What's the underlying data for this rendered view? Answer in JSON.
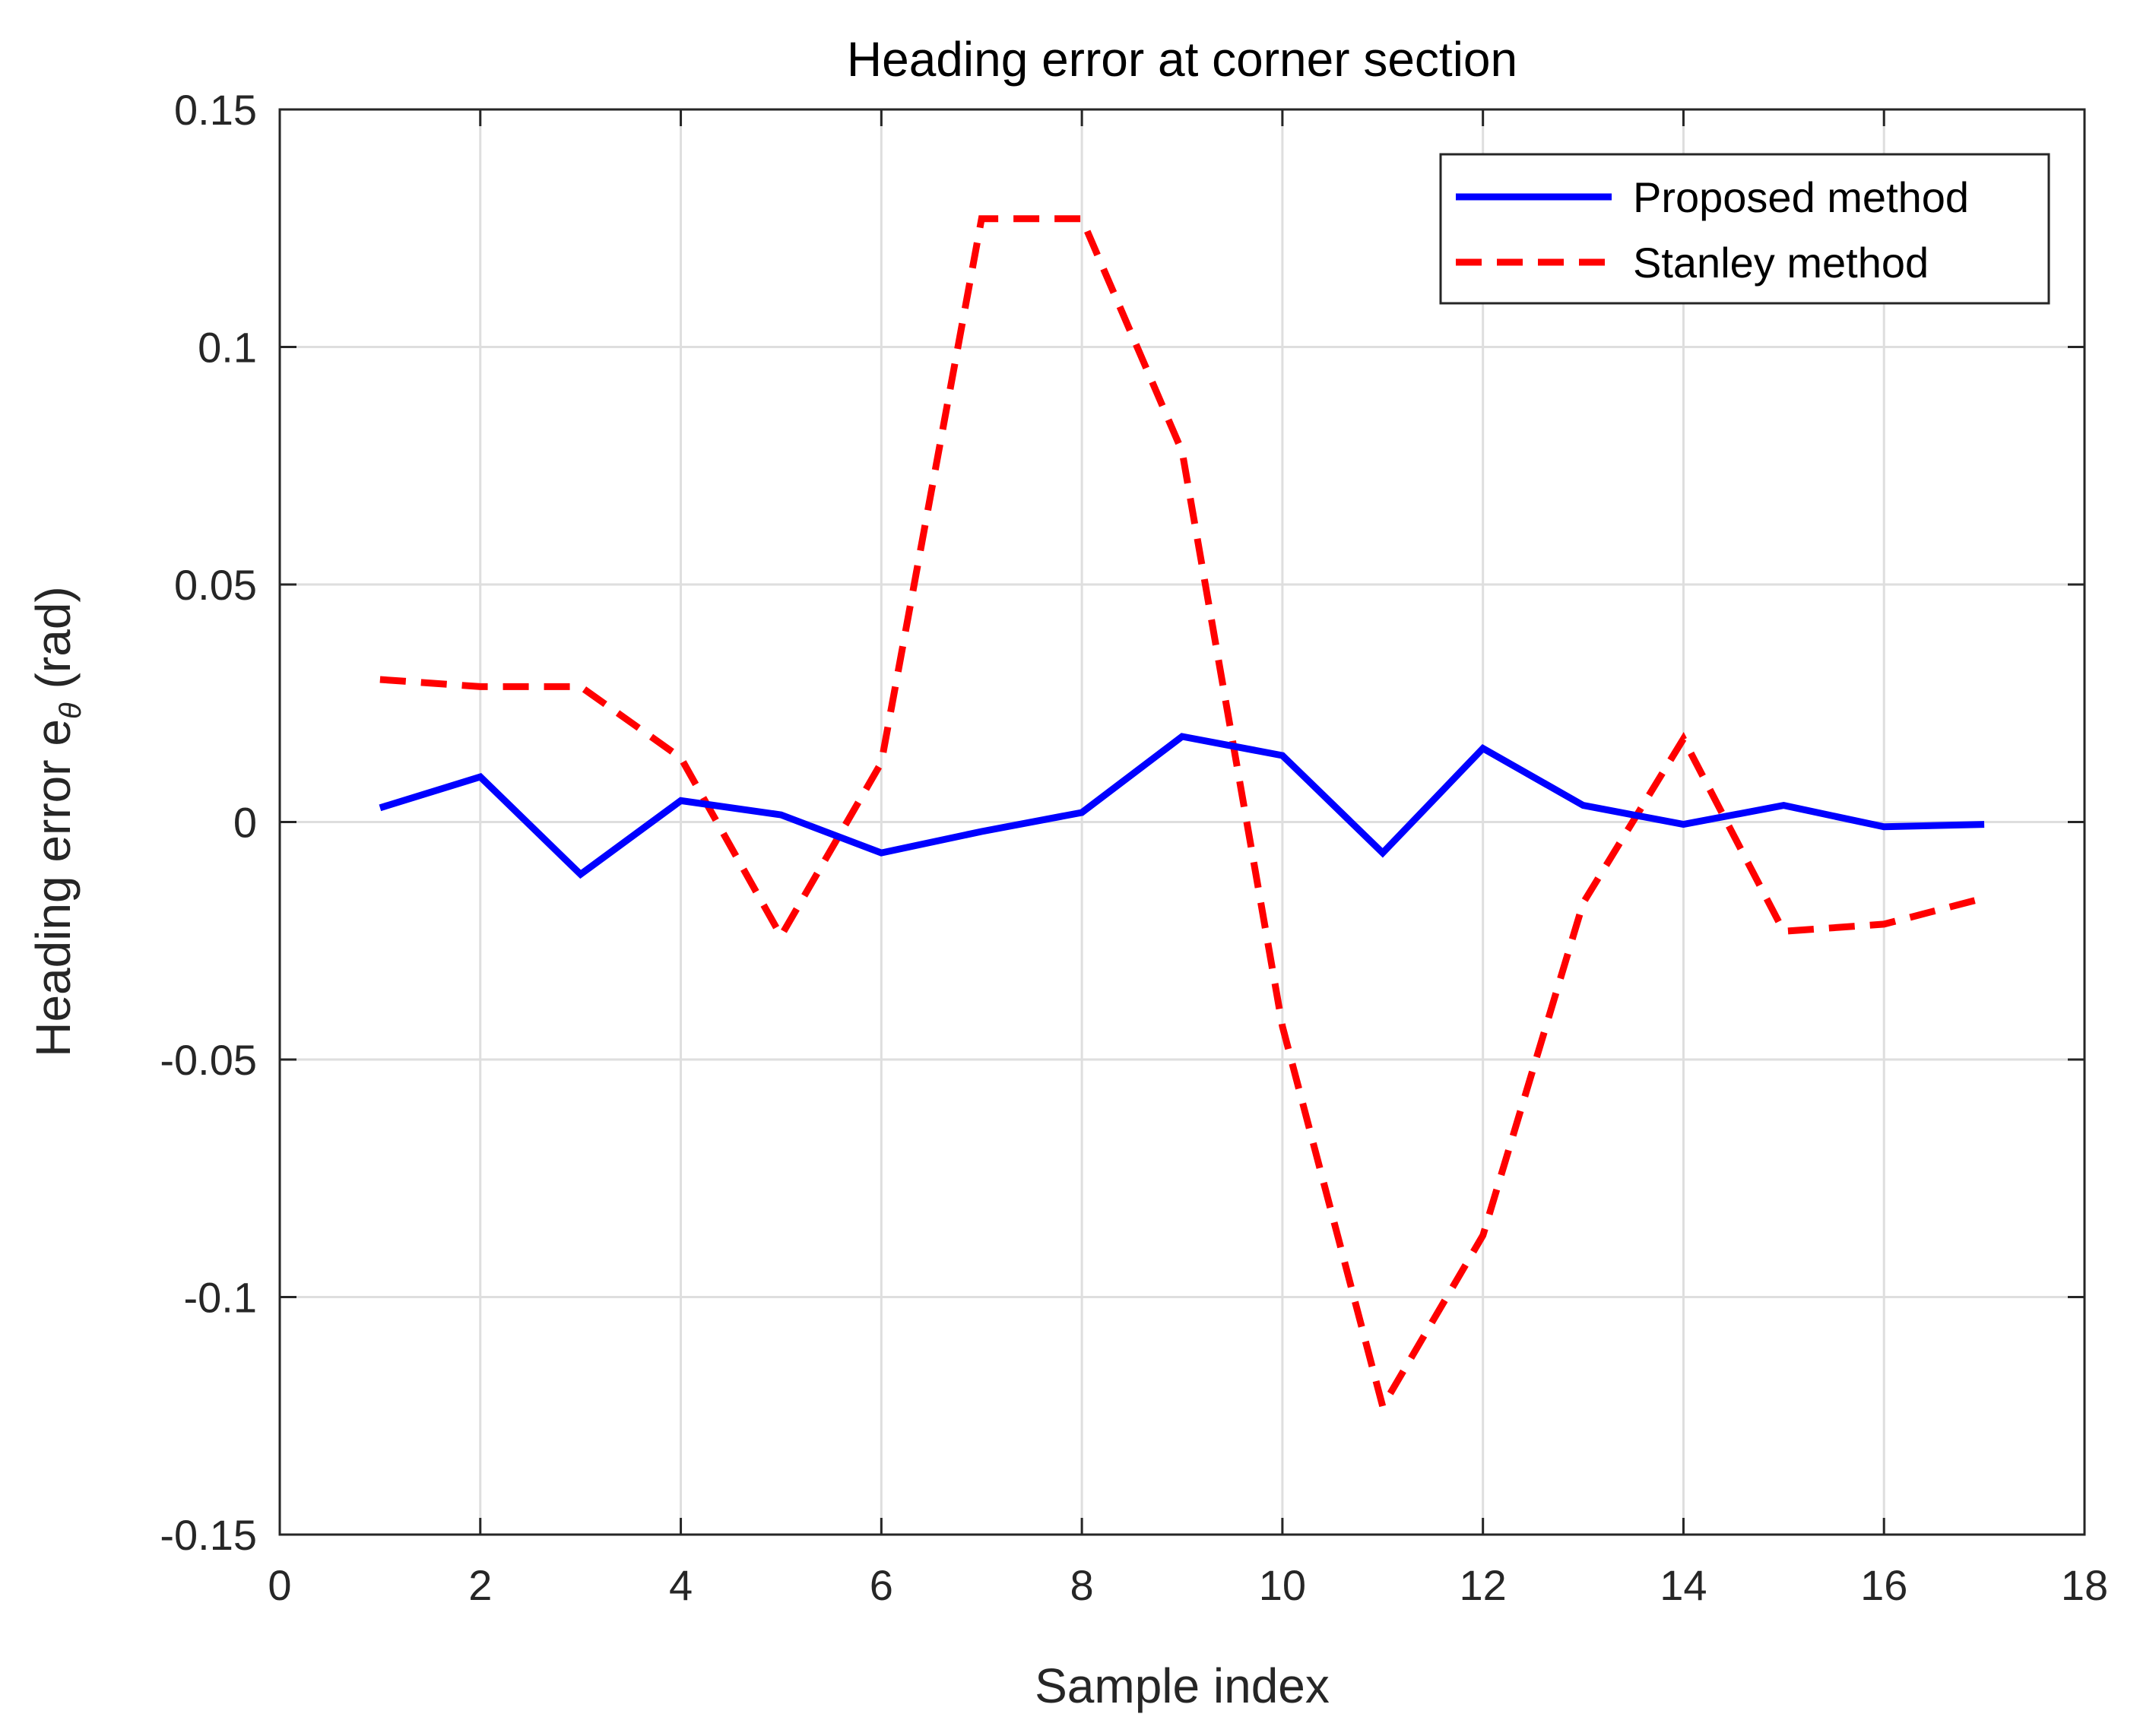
{
  "chart_data": {
    "type": "line",
    "title": "Heading error at corner section",
    "xlabel": "Sample index",
    "ylabel": "Heading error e",
    "ylabel_subscript": "θ",
    "ylabel_unit": "(rad)",
    "xlim": [
      0,
      18
    ],
    "ylim": [
      -0.15,
      0.15
    ],
    "x_ticks": [
      0,
      2,
      4,
      6,
      8,
      10,
      12,
      14,
      16,
      18
    ],
    "x_tick_labels": [
      "0",
      "2",
      "4",
      "6",
      "8",
      "10",
      "12",
      "14",
      "16",
      "18"
    ],
    "y_ticks": [
      -0.15,
      -0.1,
      -0.05,
      0,
      0.05,
      0.1,
      0.15
    ],
    "y_tick_labels": [
      "-0.15",
      "-0.1",
      "-0.05",
      "0",
      "0.05",
      "0.1",
      "0.15"
    ],
    "grid": true,
    "legend_position": "top-right",
    "x": [
      1,
      2,
      3,
      4,
      5,
      6,
      7,
      8,
      9,
      10,
      11,
      12,
      13,
      14,
      15,
      16,
      17
    ],
    "series": [
      {
        "name": "Proposed method",
        "color": "#0000ff",
        "style": "solid",
        "values": [
          0.003,
          0.0095,
          -0.011,
          0.0045,
          0.0015,
          -0.0065,
          -0.002,
          0.002,
          0.018,
          0.014,
          -0.0065,
          0.0155,
          0.0035,
          -0.0005,
          0.0035,
          -0.001,
          -0.0005
        ]
      },
      {
        "name": "Stanley method",
        "color": "#ff0000",
        "style": "dashed",
        "values": [
          0.03,
          0.0285,
          0.0285,
          0.0135,
          -0.024,
          0.0125,
          0.127,
          0.127,
          0.078,
          -0.043,
          -0.123,
          -0.087,
          -0.017,
          0.0175,
          -0.023,
          -0.0215,
          -0.016
        ]
      }
    ]
  }
}
